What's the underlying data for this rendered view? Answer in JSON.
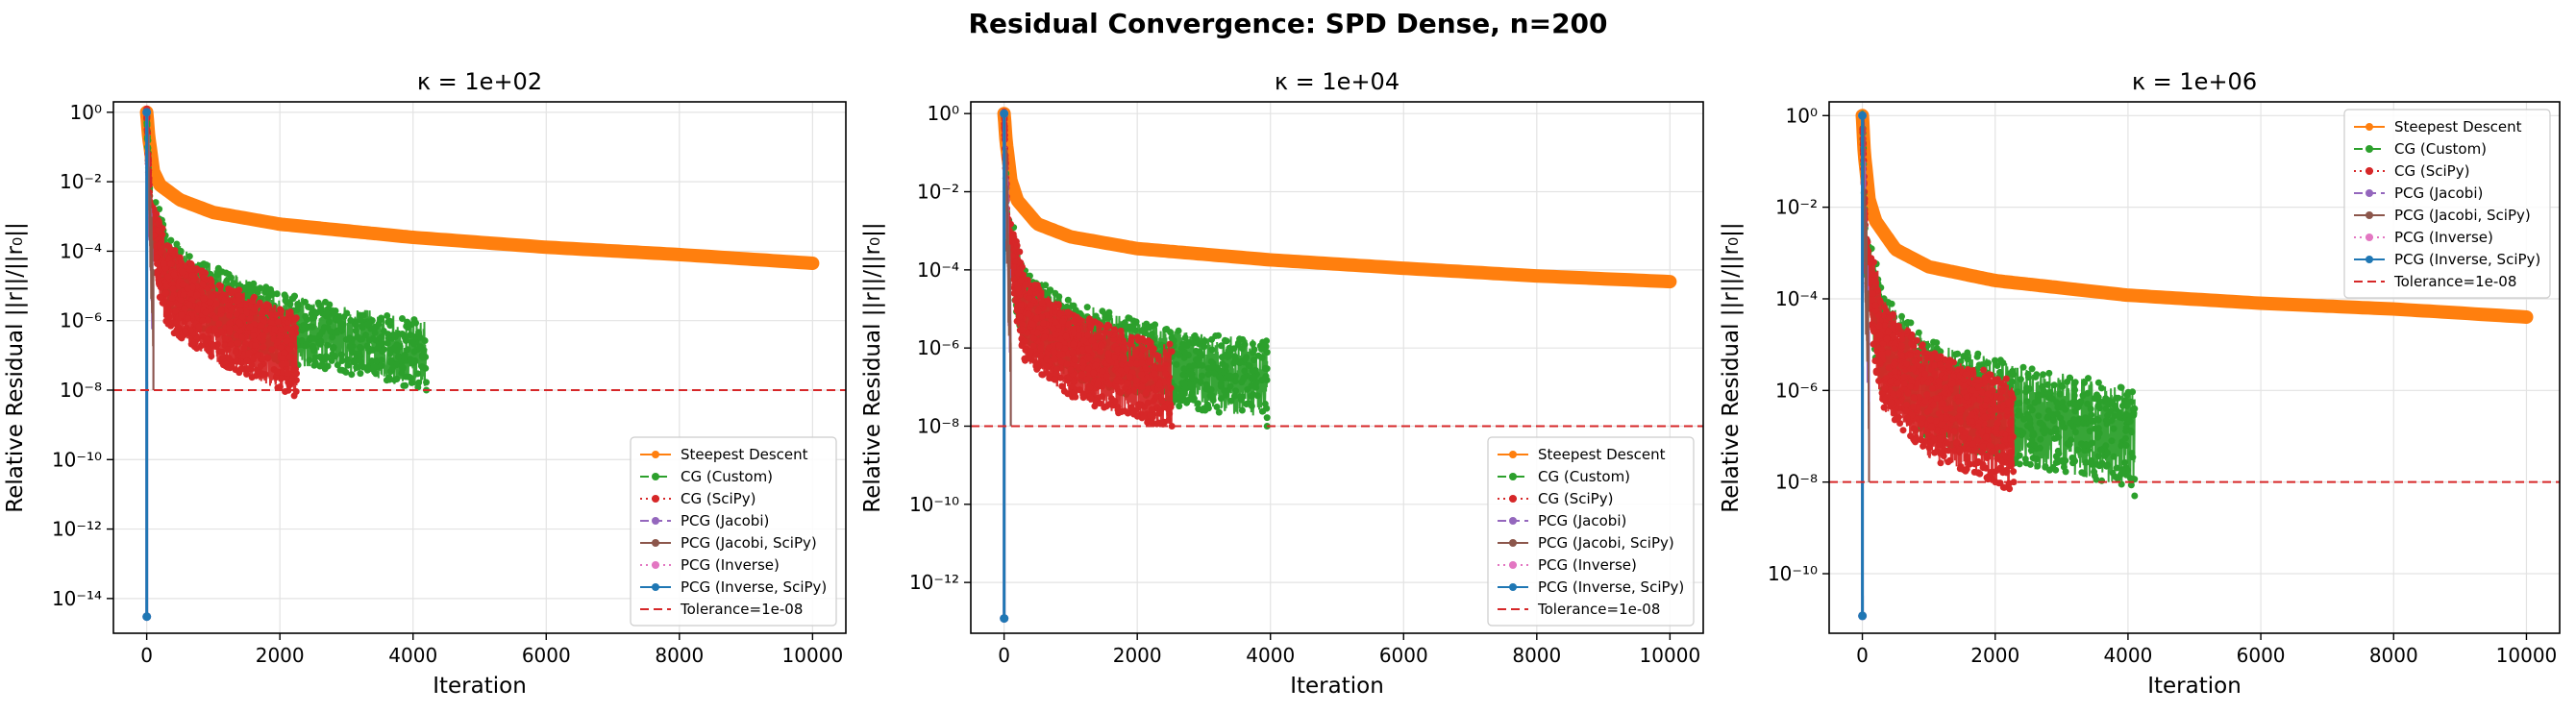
{
  "figure": {
    "suptitle": "Residual Convergence: SPD Dense, n=200"
  },
  "series_styles": [
    {
      "name": "Steepest Descent",
      "color": "#ff7f0e",
      "dash": "solid"
    },
    {
      "name": "CG (Custom)",
      "color": "#2ca02c",
      "dash": "dashdot"
    },
    {
      "name": "CG (SciPy)",
      "color": "#d62728",
      "dash": "dotted"
    },
    {
      "name": "PCG (Jacobi)",
      "color": "#9467bd",
      "dash": "dashed"
    },
    {
      "name": "PCG (Jacobi, SciPy)",
      "color": "#8c564b",
      "dash": "solid"
    },
    {
      "name": "PCG (Inverse)",
      "color": "#e377c2",
      "dash": "dotted"
    },
    {
      "name": "PCG (Inverse, SciPy)",
      "color": "#1f77b4",
      "dash": "solid"
    },
    {
      "name": "Tolerance=1e-08",
      "color": "#d62728",
      "dash": "dashed"
    }
  ],
  "chart_data": [
    {
      "type": "line",
      "title": "κ = 1e+02",
      "xlabel": "Iteration",
      "ylabel": "Relative Residual ||r||/||r₀||",
      "yscale": "log",
      "xlim": [
        -500,
        10500
      ],
      "ylim_exp": [
        -15,
        0.3
      ],
      "xticks": [
        0,
        2000,
        4000,
        6000,
        8000,
        10000
      ],
      "ytick_exps": [
        0,
        -2,
        -4,
        -6,
        -8,
        -10,
        -12,
        -14
      ],
      "grid": true,
      "legend_position": "lower-right",
      "tolerance": 1e-08,
      "series": [
        {
          "name": "Steepest Descent",
          "color": "#ff7f0e",
          "marker": "o",
          "kind": "smooth",
          "points": [
            [
              0,
              1
            ],
            [
              30,
              0.2
            ],
            [
              100,
              0.02
            ],
            [
              200,
              0.008
            ],
            [
              500,
              0.003
            ],
            [
              1000,
              0.0013
            ],
            [
              2000,
              0.0006
            ],
            [
              4000,
              0.00025
            ],
            [
              6000,
              0.00013
            ],
            [
              8000,
              8e-05
            ],
            [
              10000,
              4.5e-05
            ]
          ]
        },
        {
          "name": "CG (Custom)",
          "color": "#2ca02c",
          "marker": "o",
          "kind": "noisy",
          "x_end": 4200,
          "center_exps": [
            [
              0,
              0
            ],
            [
              50,
              -2.8
            ],
            [
              300,
              -4.6
            ],
            [
              1000,
              -5.4
            ],
            [
              2000,
              -6.2
            ],
            [
              4200,
              -7
            ]
          ],
          "spread": 1.0,
          "end_value": 1e-08
        },
        {
          "name": "CG (SciPy)",
          "color": "#d62728",
          "marker": "o",
          "kind": "noisy",
          "x_end": 2250,
          "center_exps": [
            [
              0,
              0
            ],
            [
              50,
              -3
            ],
            [
              300,
              -5
            ],
            [
              1000,
              -6
            ],
            [
              2250,
              -7
            ]
          ],
          "spread": 1.2,
          "end_value": 3e-08
        },
        {
          "name": "PCG (Jacobi)",
          "color": "#9467bd",
          "marker": "o",
          "kind": "spike",
          "x_end": 100,
          "end_value": 1e-08
        },
        {
          "name": "PCG (Jacobi, SciPy)",
          "color": "#8c564b",
          "marker": "o",
          "kind": "spike",
          "x_end": 100,
          "end_value": 1e-08
        },
        {
          "name": "PCG (Inverse)",
          "color": "#e377c2",
          "marker": "o",
          "kind": "drop",
          "x_end": 1,
          "end_value": 3e-15
        },
        {
          "name": "PCG (Inverse, SciPy)",
          "color": "#1f77b4",
          "marker": "o",
          "kind": "drop",
          "x_end": 1,
          "end_value": 3e-15
        }
      ],
      "legend": [
        "Steepest Descent",
        "CG (Custom)",
        "CG (SciPy)",
        "PCG (Jacobi)",
        "PCG (Jacobi, SciPy)",
        "PCG (Inverse)",
        "PCG (Inverse, SciPy)",
        "Tolerance=1e-08"
      ]
    },
    {
      "type": "line",
      "title": "κ = 1e+04",
      "xlabel": "Iteration",
      "ylabel": "Relative Residual ||r||/||r₀||",
      "yscale": "log",
      "xlim": [
        -500,
        10500
      ],
      "ylim_exp": [
        -13.3,
        0.3
      ],
      "xticks": [
        0,
        2000,
        4000,
        6000,
        8000,
        10000
      ],
      "ytick_exps": [
        0,
        -2,
        -4,
        -6,
        -8,
        -10,
        -12
      ],
      "grid": true,
      "legend_position": "lower-right",
      "tolerance": 1e-08,
      "series": [
        {
          "name": "Steepest Descent",
          "color": "#ff7f0e",
          "marker": "o",
          "kind": "smooth",
          "points": [
            [
              0,
              1
            ],
            [
              30,
              0.2
            ],
            [
              100,
              0.02
            ],
            [
              200,
              0.006
            ],
            [
              500,
              0.0015
            ],
            [
              1000,
              0.0007
            ],
            [
              2000,
              0.00035
            ],
            [
              4000,
              0.00018
            ],
            [
              6000,
              0.00011
            ],
            [
              8000,
              7e-05
            ],
            [
              10000,
              5e-05
            ]
          ]
        },
        {
          "name": "CG (Custom)",
          "color": "#2ca02c",
          "marker": "o",
          "kind": "noisy",
          "x_end": 3950,
          "center_exps": [
            [
              0,
              0
            ],
            [
              50,
              -3
            ],
            [
              300,
              -5
            ],
            [
              1000,
              -5.8
            ],
            [
              2500,
              -6.5
            ],
            [
              3950,
              -6.8
            ]
          ],
          "spread": 1.0,
          "end_value": 1e-08
        },
        {
          "name": "CG (SciPy)",
          "color": "#d62728",
          "marker": "o",
          "kind": "noisy",
          "x_end": 2520,
          "center_exps": [
            [
              0,
              0
            ],
            [
              50,
              -3
            ],
            [
              300,
              -5.2
            ],
            [
              1000,
              -6.2
            ],
            [
              2520,
              -7
            ]
          ],
          "spread": 1.1,
          "end_value": 1e-08
        },
        {
          "name": "PCG (Jacobi)",
          "color": "#9467bd",
          "marker": "o",
          "kind": "spike",
          "x_end": 100,
          "end_value": 1e-08
        },
        {
          "name": "PCG (Jacobi, SciPy)",
          "color": "#8c564b",
          "marker": "o",
          "kind": "spike",
          "x_end": 100,
          "end_value": 1e-08
        },
        {
          "name": "PCG (Inverse)",
          "color": "#e377c2",
          "marker": "o",
          "kind": "drop",
          "x_end": 1,
          "end_value": 1.2e-13
        },
        {
          "name": "PCG (Inverse, SciPy)",
          "color": "#1f77b4",
          "marker": "o",
          "kind": "drop",
          "x_end": 1,
          "end_value": 1.2e-13
        }
      ],
      "legend": [
        "Steepest Descent",
        "CG (Custom)",
        "CG (SciPy)",
        "PCG (Jacobi)",
        "PCG (Jacobi, SciPy)",
        "PCG (Inverse)",
        "PCG (Inverse, SciPy)",
        "Tolerance=1e-08"
      ]
    },
    {
      "type": "line",
      "title": "κ = 1e+06",
      "xlabel": "Iteration",
      "ylabel": "Relative Residual ||r||/||r₀||",
      "yscale": "log",
      "xlim": [
        -500,
        10500
      ],
      "ylim_exp": [
        -11.3,
        0.3
      ],
      "xticks": [
        0,
        2000,
        4000,
        6000,
        8000,
        10000
      ],
      "ytick_exps": [
        0,
        -2,
        -4,
        -6,
        -8,
        -10
      ],
      "grid": true,
      "legend_position": "upper-right",
      "tolerance": 1e-08,
      "series": [
        {
          "name": "Steepest Descent",
          "color": "#ff7f0e",
          "marker": "o",
          "kind": "smooth",
          "points": [
            [
              0,
              1
            ],
            [
              30,
              0.15
            ],
            [
              100,
              0.015
            ],
            [
              200,
              0.005
            ],
            [
              500,
              0.0012
            ],
            [
              1000,
              0.0005
            ],
            [
              2000,
              0.00025
            ],
            [
              4000,
              0.00012
            ],
            [
              6000,
              8e-05
            ],
            [
              8000,
              6e-05
            ],
            [
              10000,
              4e-05
            ]
          ]
        },
        {
          "name": "CG (Custom)",
          "color": "#2ca02c",
          "marker": "o",
          "kind": "noisy",
          "x_end": 4100,
          "center_exps": [
            [
              0,
              0
            ],
            [
              50,
              -3
            ],
            [
              300,
              -5
            ],
            [
              1000,
              -6
            ],
            [
              2500,
              -6.6
            ],
            [
              4100,
              -7
            ]
          ],
          "spread": 1.1,
          "end_value": 5e-09
        },
        {
          "name": "CG (SciPy)",
          "color": "#d62728",
          "marker": "o",
          "kind": "noisy",
          "x_end": 2280,
          "center_exps": [
            [
              0,
              0
            ],
            [
              50,
              -3
            ],
            [
              300,
              -5.2
            ],
            [
              1000,
              -6.3
            ],
            [
              2280,
              -7
            ]
          ],
          "spread": 1.2,
          "end_value": 1e-08
        },
        {
          "name": "PCG (Jacobi)",
          "color": "#9467bd",
          "marker": "o",
          "kind": "spike",
          "x_end": 100,
          "end_value": 1e-08
        },
        {
          "name": "PCG (Jacobi, SciPy)",
          "color": "#8c564b",
          "marker": "o",
          "kind": "spike",
          "x_end": 100,
          "end_value": 1e-08
        },
        {
          "name": "PCG (Inverse)",
          "color": "#e377c2",
          "marker": "o",
          "kind": "drop",
          "x_end": 1,
          "end_value": 1.2e-11
        },
        {
          "name": "PCG (Inverse, SciPy)",
          "color": "#1f77b4",
          "marker": "o",
          "kind": "drop",
          "x_end": 1,
          "end_value": 1.2e-11
        }
      ],
      "legend": [
        "Steepest Descent",
        "CG (Custom)",
        "CG (SciPy)",
        "PCG (Jacobi)",
        "PCG (Jacobi, SciPy)",
        "PCG (Inverse)",
        "PCG (Inverse, SciPy)",
        "Tolerance=1e-08"
      ]
    }
  ]
}
